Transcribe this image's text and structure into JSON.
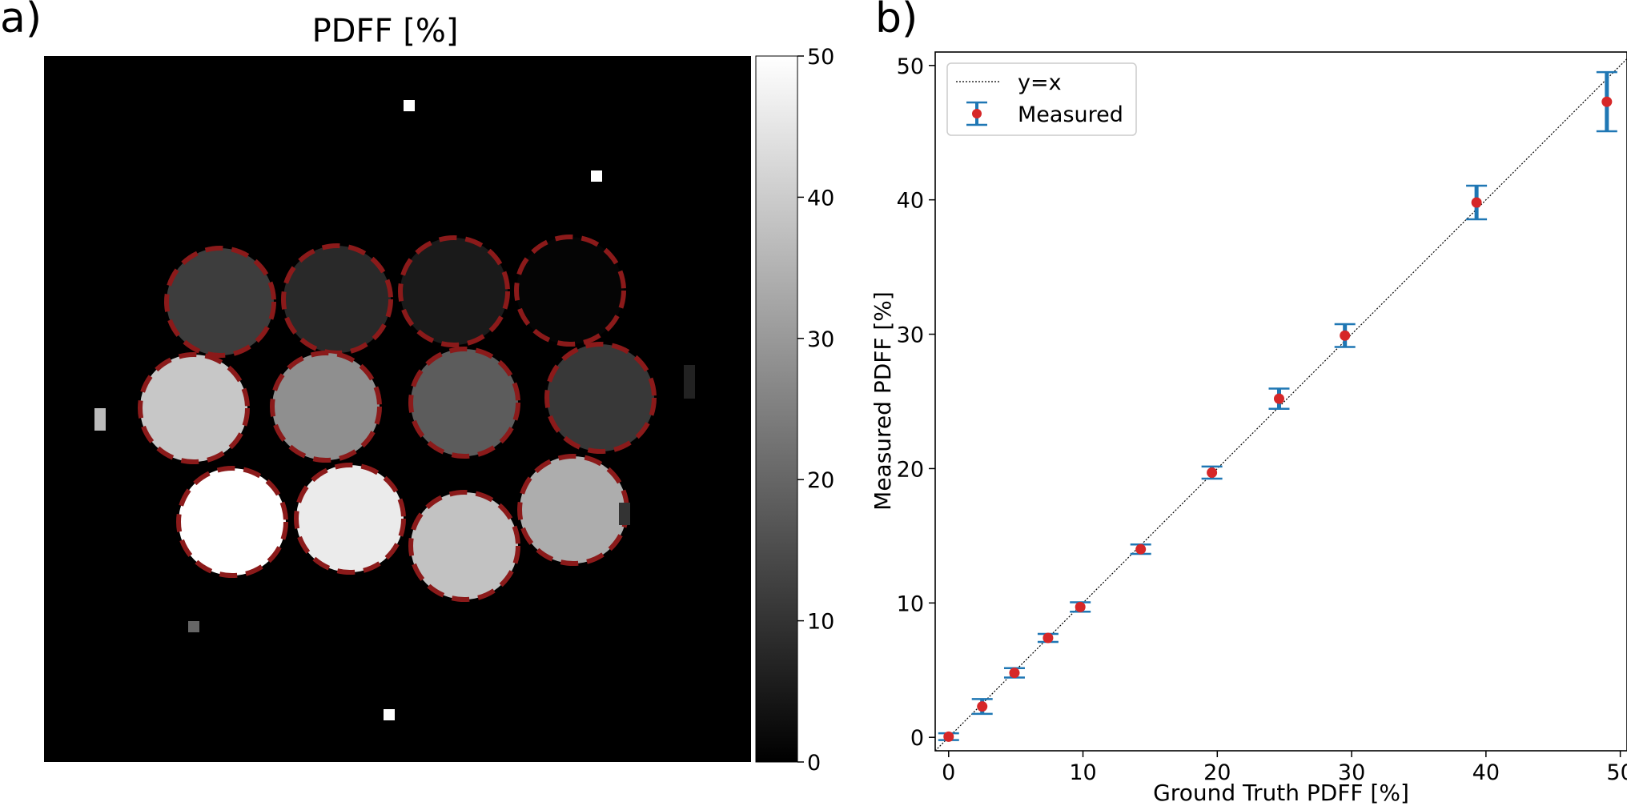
{
  "panel_a": {
    "panel_label": "a)",
    "title": "PDFF [%]",
    "colorbar": {
      "min": 0,
      "max": 50,
      "ticks": [
        "0",
        "10",
        "20",
        "30",
        "40",
        "50"
      ],
      "tick_values": [
        0,
        10,
        20,
        30,
        40,
        50
      ]
    },
    "phantom_rows": [
      [
        12,
        8,
        5,
        1
      ],
      [
        39,
        28,
        18,
        11
      ],
      [
        50,
        46,
        38,
        34
      ]
    ],
    "outline_color": "#8b1a1a"
  },
  "chart_data": {
    "type": "scatter",
    "panel_label": "b)",
    "title": "",
    "xlabel": "Ground Truth PDFF [%]",
    "ylabel": "Measured PDFF [%]",
    "xlim": [
      -1,
      50.5
    ],
    "ylim": [
      -1,
      51
    ],
    "xticks": [
      0,
      10,
      20,
      30,
      40,
      50
    ],
    "yticks": [
      0,
      10,
      20,
      30,
      40,
      50
    ],
    "grid": false,
    "legend_position": "top-left",
    "reference_line": {
      "name": "y=x",
      "style": "dotted",
      "color": "#000000"
    },
    "series": [
      {
        "name": "Measured",
        "marker_color": "#d62728",
        "errorbar_color": "#1f77b4",
        "x": [
          0,
          2.5,
          4.9,
          7.4,
          9.8,
          14.3,
          19.6,
          24.6,
          29.5,
          39.3,
          49.0
        ],
        "y": [
          0.05,
          2.3,
          4.8,
          7.4,
          9.7,
          14.0,
          19.7,
          25.2,
          29.9,
          39.8,
          47.3
        ],
        "err": [
          0.25,
          0.55,
          0.35,
          0.3,
          0.35,
          0.35,
          0.45,
          0.75,
          0.85,
          1.25,
          2.2
        ]
      }
    ]
  }
}
